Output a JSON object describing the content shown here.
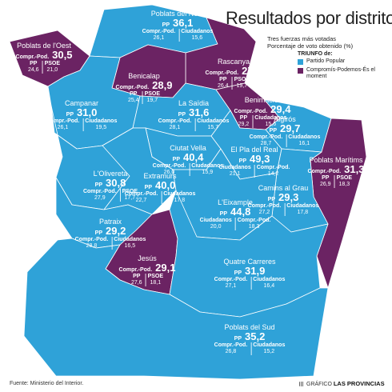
{
  "header": {
    "title": "Resultados por distritos",
    "subtitle_1": "Tres fuerzas más votadas",
    "subtitle_2": "Porcentaje de voto obtenido (%)"
  },
  "legend": {
    "title": "TRIUNFO de:",
    "items": [
      {
        "label": "Partido Popular",
        "color": "#2fa2d8"
      },
      {
        "label": "Compromís-Podemos-És el moment",
        "color": "#6b2363"
      }
    ]
  },
  "colors": {
    "pp": "#2fa2d8",
    "compromis": "#6b2363",
    "border": "#ffffff"
  },
  "districts": [
    {
      "name": "Poblats de l'Oest",
      "winner": "compromis",
      "lead_label": "Compr.-Pod.",
      "lead_value": "30,5",
      "others": [
        {
          "party": "PP",
          "value": "24,6"
        },
        {
          "party": "PSOE",
          "value": "21,0"
        }
      ]
    },
    {
      "name": "Poblats del Nord",
      "winner": "pp",
      "lead_label": "PP",
      "lead_value": "36,1",
      "others": [
        {
          "party": "Compr.-Pod.",
          "value": "26,1"
        },
        {
          "party": "Ciudadanos",
          "value": "15,6"
        }
      ]
    },
    {
      "name": "Rascanya",
      "winner": "compromis",
      "lead_label": "Compr.-Pod.",
      "lead_value": "27,9",
      "others": [
        {
          "party": "PP",
          "value": "26,4"
        },
        {
          "party": "PSOE",
          "value": "19,7"
        }
      ]
    },
    {
      "name": "Benicalap",
      "winner": "compromis",
      "lead_label": "Compr.-Pod.",
      "lead_value": "28,9",
      "others": [
        {
          "party": "PP",
          "value": "25,4"
        },
        {
          "party": "PSOE",
          "value": "19,7"
        }
      ]
    },
    {
      "name": "Campanar",
      "winner": "pp",
      "lead_label": "PP",
      "lead_value": "31,0",
      "others": [
        {
          "party": "Compr.-Pod.",
          "value": "26,1"
        },
        {
          "party": "Ciudadanos",
          "value": "19,5"
        }
      ]
    },
    {
      "name": "La Saïdia",
      "winner": "pp",
      "lead_label": "PP",
      "lead_value": "31,6",
      "others": [
        {
          "party": "Compr.-Pod.",
          "value": "28,1"
        },
        {
          "party": "Ciudadanos",
          "value": "15,7"
        }
      ]
    },
    {
      "name": "Benimaclet",
      "winner": "compromis",
      "lead_label": "Compr.-Pod.",
      "lead_value": "29,4",
      "others": [
        {
          "party": "PP",
          "value": "29,2"
        },
        {
          "party": "Ciudadanos",
          "value": "15,6"
        }
      ]
    },
    {
      "name": "Algirós",
      "winner": "pp",
      "lead_label": "PP",
      "lead_value": "29,7",
      "others": [
        {
          "party": "Compr.-Pod.",
          "value": "28,7"
        },
        {
          "party": "Ciudadanos",
          "value": "16,1"
        }
      ]
    },
    {
      "name": "Ciutat Vella",
      "winner": "pp",
      "lead_label": "PP",
      "lead_value": "40,4",
      "others": [
        {
          "party": "Compr.-Pod.",
          "value": "26,0"
        },
        {
          "party": "Ciudadanos",
          "value": "15,9"
        }
      ]
    },
    {
      "name": "El Pla del Real",
      "winner": "pp",
      "lead_label": "PP",
      "lead_value": "49,3",
      "others": [
        {
          "party": "Ciudadanos",
          "value": "21,1"
        },
        {
          "party": "Compr.-Pod.",
          "value": "14,2"
        }
      ]
    },
    {
      "name": "Poblats Marítims",
      "winner": "compromis",
      "lead_label": "Compr.-Pod.",
      "lead_value": "31,3",
      "others": [
        {
          "party": "PP",
          "value": "26,9"
        },
        {
          "party": "PSOE",
          "value": "18,3"
        }
      ]
    },
    {
      "name": "L'Olivereta",
      "winner": "pp",
      "lead_label": "PP",
      "lead_value": "30,8",
      "others": [
        {
          "party": "Compr.-Pod.",
          "value": "27,9"
        },
        {
          "party": "PSOE",
          "value": "17,7"
        }
      ]
    },
    {
      "name": "Extramurs",
      "winner": "pp",
      "lead_label": "PP",
      "lead_value": "40,0",
      "others": [
        {
          "party": "Compr.-Pod.",
          "value": "22,7"
        },
        {
          "party": "Ciudadanos",
          "value": "17,8"
        }
      ]
    },
    {
      "name": "Camins al Grau",
      "winner": "pp",
      "lead_label": "PP",
      "lead_value": "29,3",
      "others": [
        {
          "party": "Compr.-Pod.",
          "value": "27,2"
        },
        {
          "party": "Ciudadanos",
          "value": "17,8"
        }
      ]
    },
    {
      "name": "L'Eixample",
      "winner": "pp",
      "lead_label": "PP",
      "lead_value": "44,8",
      "others": [
        {
          "party": "Ciudadanos",
          "value": "20,0"
        },
        {
          "party": "Compr.-Pod.",
          "value": "18,3"
        }
      ]
    },
    {
      "name": "Patraix",
      "winner": "pp",
      "lead_label": "PP",
      "lead_value": "29,2",
      "others": [
        {
          "party": "Compr.-Pod.",
          "value": "28,8"
        },
        {
          "party": "Ciudadanos",
          "value": "16,5"
        }
      ]
    },
    {
      "name": "Jesús",
      "winner": "compromis",
      "lead_label": "Compr.-Pod.",
      "lead_value": "29,1",
      "others": [
        {
          "party": "PP",
          "value": "27,6"
        },
        {
          "party": "PSOE",
          "value": "18,1"
        }
      ]
    },
    {
      "name": "Quatre Carreres",
      "winner": "pp",
      "lead_label": "PP",
      "lead_value": "31,9",
      "others": [
        {
          "party": "Compr.-Pod.",
          "value": "27,1"
        },
        {
          "party": "Ciudadanos",
          "value": "16,4"
        }
      ]
    },
    {
      "name": "Poblats del Sud",
      "winner": "pp",
      "lead_label": "PP",
      "lead_value": "35,2",
      "others": [
        {
          "party": "Compr.-Pod.",
          "value": "26,8"
        },
        {
          "party": "Ciudadanos",
          "value": "15,2"
        }
      ]
    }
  ],
  "footer": {
    "source": "Fuente: Ministerio del Interior.",
    "credit_prefix": "GRÁFICO",
    "credit_brand": "LAS PROVINCIAS"
  }
}
